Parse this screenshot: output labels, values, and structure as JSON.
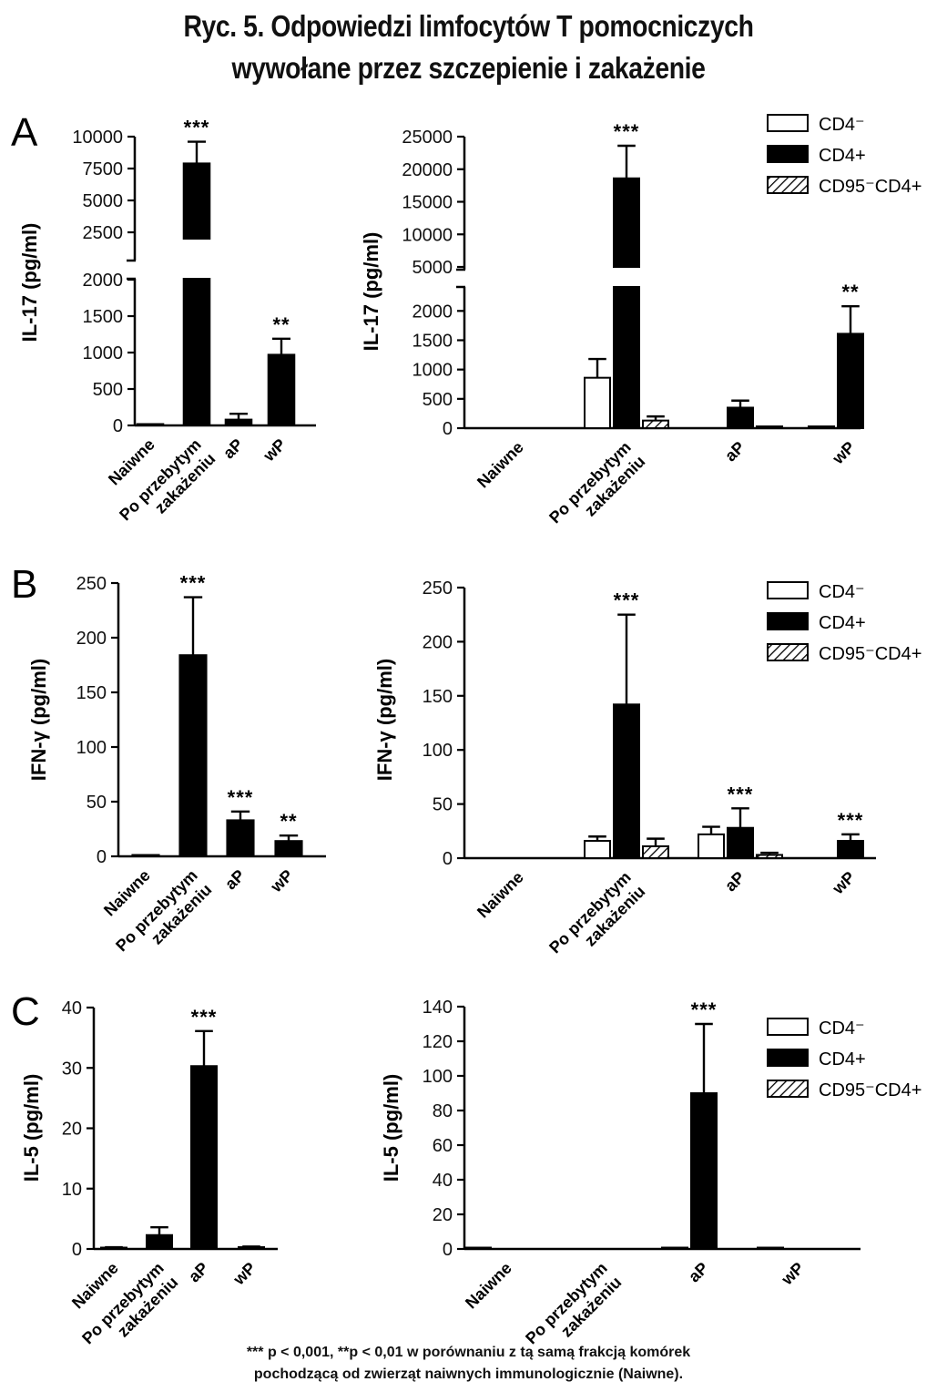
{
  "figure": {
    "title_line1": "Ryc. 5. Odpowiedzi limfocytów T pomocniczych",
    "title_line2": "wywołane przez szczepienie i zakażenie",
    "footnote_line1": "*** p < 0,001, **p < 0,01 w porównaniu z tą samą frakcją komórek",
    "footnote_line2": "pochodzącą od zwierząt naiwnych immunologicznie (Naiwne)."
  },
  "legend": {
    "items": [
      {
        "label": "CD4⁻",
        "fill": "open"
      },
      {
        "label": "CD4+",
        "fill": "solid"
      },
      {
        "label": "CD95⁻CD4+",
        "fill": "hatched"
      }
    ]
  },
  "colors": {
    "bar_solid": "#000000",
    "bar_open": "#ffffff",
    "axis": "#000000"
  },
  "chart_data": [
    {
      "panel": "A",
      "type": "bar",
      "ylabel": "IL-17 (pg/ml)",
      "categories": [
        "Naiwne",
        "Po przebytym\nzakażeniu",
        "aP",
        "wP"
      ],
      "axis_break": {
        "lower": [
          0,
          2000
        ],
        "upper": [
          2000,
          10000
        ]
      },
      "yticks_lower": [
        0,
        500,
        1000,
        1500,
        2000
      ],
      "yticks_upper": [
        2500,
        5000,
        7500,
        10000
      ],
      "series": [
        {
          "values": [
            5,
            7900,
            80,
            970
          ],
          "errors": [
            5,
            1700,
            80,
            220
          ]
        }
      ],
      "annotations": [
        "",
        "***",
        "",
        "**"
      ]
    },
    {
      "panel": "A",
      "type": "bar",
      "ylabel": "IL-17 (pg/ml)",
      "categories": [
        "Naiwne",
        "Po przebytym\nzakażeniu",
        "aP",
        "wP"
      ],
      "axis_break": {
        "lower": [
          0,
          2300
        ],
        "upper": [
          5000,
          25000
        ]
      },
      "yticks_lower": [
        0,
        500,
        1000,
        1500,
        2000
      ],
      "yticks_upper": [
        5000,
        10000,
        15000,
        20000,
        25000
      ],
      "series": [
        {
          "name": "CD4⁻",
          "values": [
            0,
            860,
            0,
            30
          ],
          "errors": [
            0,
            320,
            0,
            0
          ]
        },
        {
          "name": "CD4+",
          "values": [
            0,
            18600,
            350,
            1610
          ],
          "errors": [
            0,
            5000,
            120,
            470
          ]
        },
        {
          "name": "CD95⁻CD4+",
          "values": [
            0,
            130,
            30,
            0
          ],
          "errors": [
            0,
            70,
            0,
            0
          ]
        }
      ],
      "annotations": [
        "",
        "***",
        "",
        "**"
      ]
    },
    {
      "panel": "B",
      "type": "bar",
      "ylabel": "IFN-γ (pg/ml)",
      "categories": [
        "Naiwne",
        "Po przebytym\nzakażeniu",
        "aP",
        "wP"
      ],
      "ylim": [
        0,
        250
      ],
      "yticks": [
        0,
        50,
        100,
        150,
        200,
        250
      ],
      "series": [
        {
          "values": [
            0.5,
            184,
            33,
            14
          ],
          "errors": [
            0.5,
            53,
            8,
            5
          ]
        }
      ],
      "annotations": [
        "",
        "***",
        "***",
        "**"
      ]
    },
    {
      "panel": "B",
      "type": "bar",
      "ylabel": "IFN-γ (pg/ml)",
      "categories": [
        "Naiwne",
        "Po przebytym\nzakażeniu",
        "aP",
        "wP"
      ],
      "ylim": [
        0,
        250
      ],
      "yticks": [
        0,
        50,
        100,
        150,
        200,
        250
      ],
      "series": [
        {
          "name": "CD4⁻",
          "values": [
            0,
            16,
            22,
            0
          ],
          "errors": [
            0,
            4,
            7,
            0
          ]
        },
        {
          "name": "CD4+",
          "values": [
            0,
            142,
            28,
            16
          ],
          "errors": [
            0,
            83,
            18,
            6
          ]
        },
        {
          "name": "CD95⁻CD4+",
          "values": [
            0,
            11,
            3,
            0
          ],
          "errors": [
            0,
            7,
            2,
            0
          ]
        }
      ],
      "annotations": [
        "",
        "***",
        "***",
        "***"
      ]
    },
    {
      "panel": "C",
      "type": "bar",
      "ylabel": "IL-5 (pg/ml)",
      "categories": [
        "Naiwne",
        "Po przebytym\nzakażeniu",
        "aP",
        "wP"
      ],
      "ylim": [
        0,
        40
      ],
      "yticks": [
        0,
        10,
        20,
        30,
        40
      ],
      "series": [
        {
          "values": [
            0.2,
            2.3,
            30.3,
            0.3
          ],
          "errors": [
            0.1,
            1.3,
            5.8,
            0.1
          ]
        }
      ],
      "annotations": [
        "",
        "",
        "***",
        ""
      ]
    },
    {
      "panel": "C",
      "type": "bar",
      "ylabel": "IL-5 (pg/ml)",
      "categories": [
        "Naiwne",
        "Po przebytym\nzakażeniu",
        "aP",
        "wP"
      ],
      "ylim": [
        0,
        140
      ],
      "yticks": [
        0,
        20,
        40,
        60,
        80,
        100,
        120,
        140
      ],
      "series": [
        {
          "name": "CD4⁻",
          "values": [
            0.5,
            0,
            0.3,
            0.5
          ],
          "errors": [
            0,
            0,
            0,
            0
          ]
        },
        {
          "name": "CD4+",
          "values": [
            0,
            0,
            90,
            0
          ],
          "errors": [
            0,
            0,
            40,
            0
          ]
        },
        {
          "name": "CD95⁻CD4+",
          "values": [
            0,
            0,
            0,
            0
          ],
          "errors": [
            0,
            0,
            0,
            0
          ]
        }
      ],
      "annotations": [
        "",
        "",
        "***",
        ""
      ]
    }
  ]
}
